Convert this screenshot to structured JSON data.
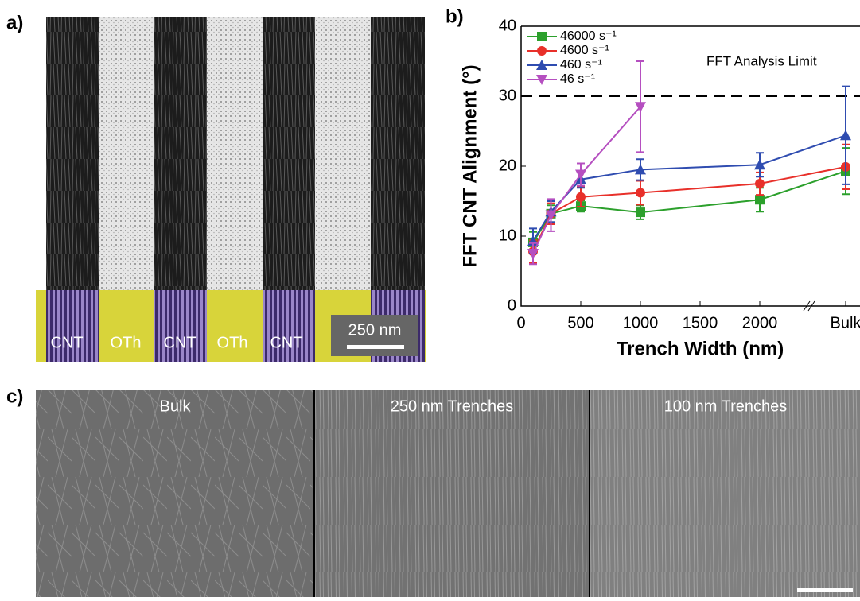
{
  "panels": {
    "a": {
      "label": "a)",
      "stripes": [
        "CNT",
        "OTh",
        "CNT",
        "OTh",
        "CNT"
      ],
      "scale_bar": "250 nm"
    },
    "b": {
      "label": "b)"
    },
    "c": {
      "label": "c)",
      "images": [
        "Bulk",
        "250 nm Trenches",
        "100 nm Trenches"
      ]
    }
  },
  "chart_data": {
    "type": "line",
    "x_label": "Trench Width (nm)",
    "y_label": "FFT CNT Alignment (°)",
    "x": [
      100,
      250,
      500,
      1000,
      2000,
      2720
    ],
    "xlim": [
      0,
      2840
    ],
    "xticks": [
      0,
      500,
      1000,
      1500,
      2000,
      {
        "value": 2720,
        "label": "Bulk"
      }
    ],
    "ylim": [
      0,
      40
    ],
    "yticks": [
      0,
      10,
      20,
      30,
      40
    ],
    "legend": "upper left",
    "reference_line": {
      "value": 30,
      "label": "FFT Analysis Limit"
    },
    "series": [
      {
        "name": "46000 s⁻¹",
        "color": "#2ca02c",
        "marker": "square",
        "values": [
          9.1,
          13.2,
          14.3,
          13.4,
          15.2,
          19.3
        ],
        "errors": [
          1.5,
          1.2,
          0.8,
          1.0,
          1.7,
          3.3
        ]
      },
      {
        "name": "4600 s⁻¹",
        "color": "#e8302a",
        "marker": "circle",
        "values": [
          7.8,
          13.2,
          15.6,
          16.2,
          17.5,
          19.9
        ],
        "errors": [
          1.6,
          1.5,
          1.4,
          1.7,
          1.6,
          3.2
        ]
      },
      {
        "name": "460 s⁻¹",
        "color": "#2f4cb0",
        "marker": "triangle-up",
        "values": [
          9.3,
          13.5,
          18.1,
          19.5,
          20.2,
          24.4
        ],
        "errors": [
          1.8,
          1.5,
          1.2,
          1.5,
          1.7,
          7.0
        ]
      },
      {
        "name": "46 s⁻¹",
        "color": "#b54fc0",
        "marker": "triangle-down",
        "values": [
          7.5,
          13.0,
          18.8,
          28.5,
          null,
          null
        ],
        "errors": [
          1.5,
          2.3,
          1.6,
          6.5,
          null,
          null
        ]
      }
    ]
  }
}
